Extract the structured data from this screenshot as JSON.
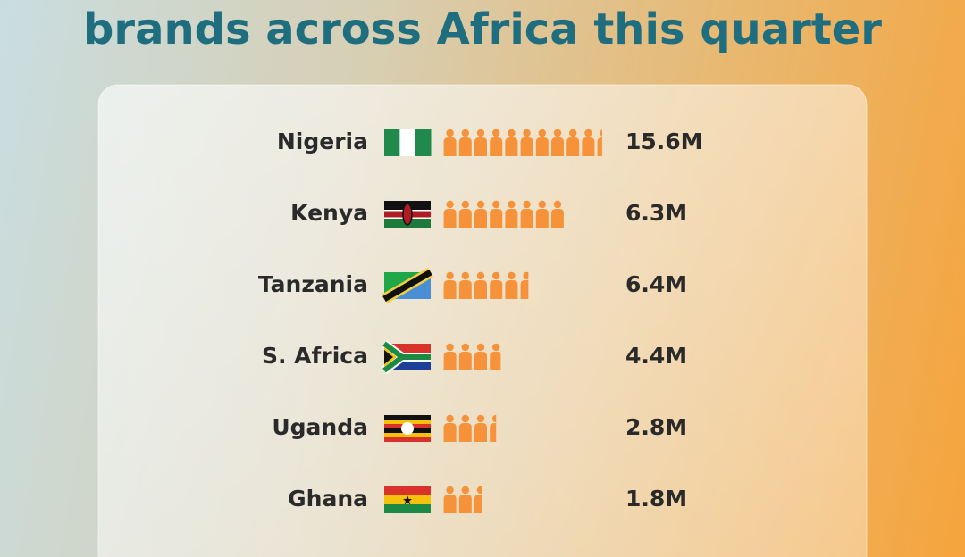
{
  "chart_data": {
    "type": "pictogram",
    "title": "brands across Africa this quarter",
    "categories": [
      "Nigeria",
      "Kenya",
      "Tanzania",
      "S. Africa",
      "Uganda",
      "Ghana"
    ],
    "values": [
      15.6,
      6.3,
      6.4,
      4.4,
      2.8,
      1.8
    ],
    "value_labels": [
      "15.6M",
      "6.3M",
      "6.4M",
      "4.4M",
      "2.8M",
      "1.8M"
    ],
    "icons": [
      10.4,
      7.9,
      5.6,
      3.8,
      3.5,
      2.6
    ],
    "color": "#f5923a"
  }
}
